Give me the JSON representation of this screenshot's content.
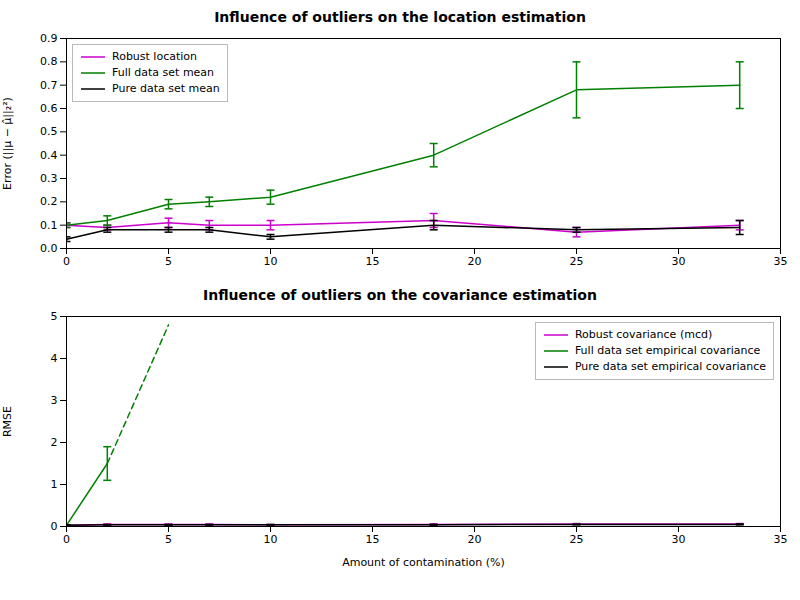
{
  "chart_data": [
    {
      "type": "line",
      "title": "Influence of outliers on the location estimation",
      "ylabel": "Error (||μ − μ̂||₂²)",
      "x": [
        0,
        2,
        5,
        7,
        10,
        18,
        25,
        33
      ],
      "xlim": [
        0,
        35
      ],
      "xticks": [
        0,
        5,
        10,
        15,
        20,
        25,
        30,
        35
      ],
      "ylim": [
        0.0,
        0.9
      ],
      "yticks": [
        {
          "value": 0.0,
          "label": "0.0"
        },
        0.1,
        0.2,
        0.3,
        0.4,
        0.5,
        0.6,
        0.7,
        0.8,
        0.9
      ],
      "grid": false,
      "legend": "upper left",
      "series": [
        {
          "name": "Robust location",
          "color": "#cc00cc",
          "line_style": "solid",
          "values": [
            0.1,
            0.09,
            0.11,
            0.1,
            0.1,
            0.12,
            0.07,
            0.1
          ],
          "errors": [
            0.01,
            0.01,
            0.02,
            0.02,
            0.02,
            0.03,
            0.02,
            0.02
          ]
        },
        {
          "name": "Full data set mean",
          "color": "#008000",
          "line_style": "solid",
          "values": [
            0.1,
            0.12,
            0.19,
            0.2,
            0.22,
            0.4,
            0.68,
            0.7
          ],
          "errors": [
            0.01,
            0.02,
            0.02,
            0.02,
            0.03,
            0.05,
            0.12,
            0.1
          ]
        },
        {
          "name": "Pure data set mean",
          "color": "#000000",
          "line_style": "solid",
          "values": [
            0.04,
            0.08,
            0.08,
            0.08,
            0.05,
            0.1,
            0.08,
            0.09
          ],
          "errors": [
            0.01,
            0.01,
            0.01,
            0.01,
            0.01,
            0.02,
            0.01,
            0.03
          ]
        }
      ]
    },
    {
      "type": "line",
      "title": "Influence of outliers on the covariance estimation",
      "ylabel": "RMSE",
      "xlabel": "Amount of contamination (%)",
      "x": [
        0,
        2,
        5,
        7,
        10,
        18,
        25,
        33
      ],
      "xlim": [
        0,
        35
      ],
      "xticks": [
        0,
        5,
        10,
        15,
        20,
        25,
        30,
        35
      ],
      "ylim": [
        0,
        5
      ],
      "yticks": [
        0,
        1,
        2,
        3,
        4,
        5
      ],
      "grid": false,
      "legend": "upper right",
      "series": [
        {
          "name": "Robust covariance (mcd)",
          "color": "#cc00cc",
          "line_style": "solid",
          "values": [
            0.03,
            0.05,
            0.05,
            0.05,
            0.04,
            0.05,
            0.06,
            0.06
          ],
          "errors": [
            0.005,
            0.008,
            0.008,
            0.008,
            0.008,
            0.01,
            0.01,
            0.01
          ]
        },
        {
          "name": "Full data set empirical covariance",
          "color": "#008000",
          "line_style": "solid",
          "x": [
            0,
            2
          ],
          "values": [
            0.03,
            1.5
          ],
          "errors": [
            0.005,
            0.4
          ]
        },
        {
          "color": "#008000",
          "line_style": "dashed",
          "x": [
            2,
            5
          ],
          "values": [
            1.5,
            4.8
          ]
        },
        {
          "name": "Pure data set empirical covariance",
          "color": "#000000",
          "line_style": "solid",
          "values": [
            0.03,
            0.04,
            0.04,
            0.04,
            0.04,
            0.04,
            0.05,
            0.05
          ],
          "errors": [
            0.005,
            0.008,
            0.008,
            0.008,
            0.008,
            0.01,
            0.01,
            0.01
          ]
        }
      ]
    }
  ]
}
